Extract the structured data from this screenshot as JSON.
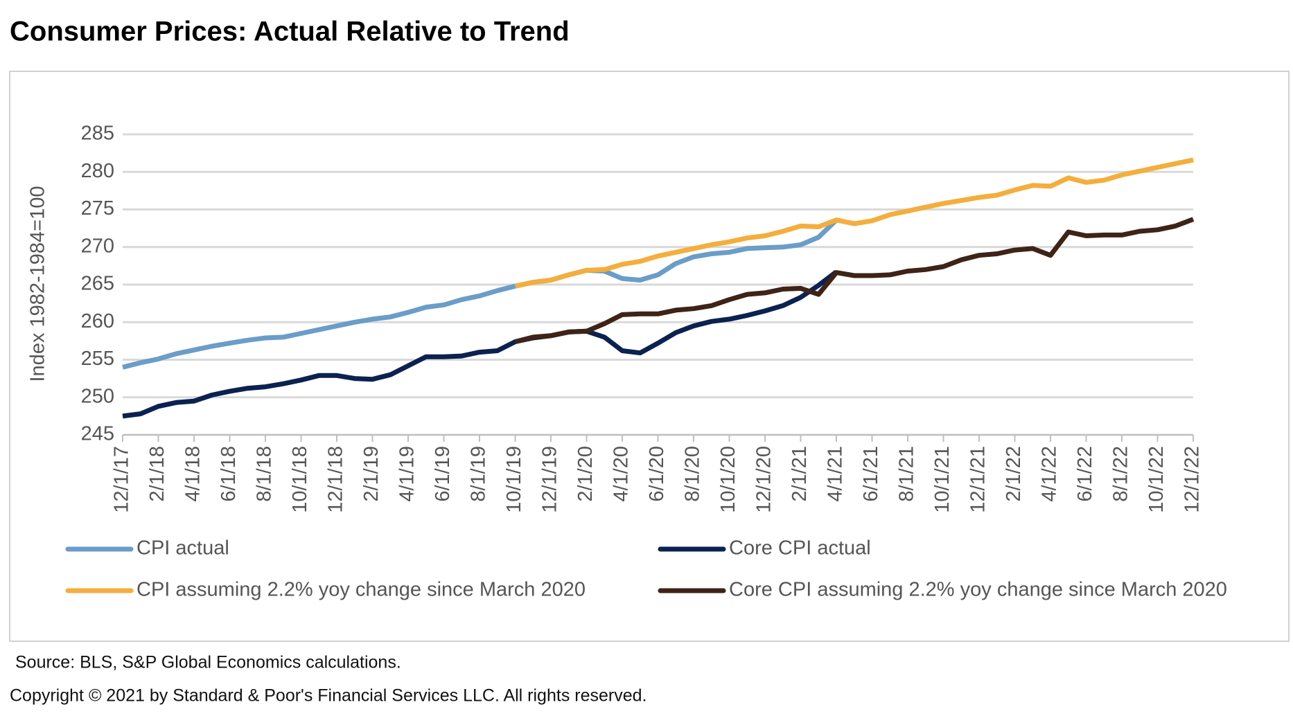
{
  "chart_data": {
    "type": "line",
    "title": "Consumer Prices: Actual Relative to Trend",
    "y_label": "Index 1982-1984=100",
    "source": "Source: BLS, S&P Global Economics calculations.",
    "copyright": "Copyright © 2021 by Standard & Poor's Financial Services LLC. All rights reserved.",
    "categories": [
      "12/1/17",
      null,
      "2/1/18",
      null,
      "4/1/18",
      null,
      "6/1/18",
      null,
      "8/1/18",
      null,
      "10/1/18",
      null,
      "12/1/18",
      null,
      "2/1/19",
      null,
      "4/1/19",
      null,
      "6/1/19",
      null,
      "8/1/19",
      null,
      "10/1/19",
      null,
      "12/1/19",
      null,
      "2/1/20",
      null,
      "4/1/20",
      null,
      "6/1/20",
      null,
      "8/1/20",
      null,
      "10/1/20",
      null,
      "12/1/20",
      null,
      "2/1/21",
      null,
      "4/1/21",
      null,
      "6/1/21",
      null,
      "8/1/21",
      null,
      "10/1/21",
      null,
      "12/1/21",
      null,
      "2/1/22",
      null,
      "4/1/22",
      null,
      "6/1/22",
      null,
      "8/1/22",
      null,
      "10/1/22",
      null,
      "12/1/22"
    ],
    "series": [
      {
        "name": "CPI actual",
        "color": "#6a9dc8",
        "values": [
          254.0,
          254.6,
          255.1,
          255.8,
          256.3,
          256.8,
          257.2,
          257.6,
          257.9,
          258.0,
          258.5,
          259.0,
          259.5,
          260.0,
          260.4,
          260.7,
          261.3,
          262.0,
          262.3,
          263.0,
          263.5,
          264.2,
          264.8,
          265.3,
          265.6,
          266.3,
          266.9,
          266.8,
          265.8,
          265.6,
          266.3,
          267.8,
          268.7,
          269.1,
          269.3,
          269.8,
          269.9,
          270.0,
          270.3,
          271.3,
          273.6,
          null,
          null,
          null,
          null,
          null,
          null,
          null,
          null,
          null,
          null,
          null,
          null,
          null,
          null,
          null,
          null,
          null,
          null,
          null,
          null
        ]
      },
      {
        "name": "Core CPI actual",
        "color": "#0b2250",
        "values": [
          247.5,
          247.8,
          248.8,
          249.3,
          249.5,
          250.3,
          250.8,
          251.2,
          251.4,
          251.8,
          252.3,
          252.9,
          252.9,
          252.5,
          252.4,
          253.0,
          254.2,
          255.4,
          255.4,
          255.5,
          256.0,
          256.2,
          257.4,
          257.9,
          258.2,
          258.7,
          258.8,
          258.0,
          256.2,
          255.9,
          257.2,
          258.6,
          259.5,
          260.1,
          260.4,
          260.9,
          261.5,
          262.2,
          263.3,
          264.9,
          266.7,
          null,
          null,
          null,
          null,
          null,
          null,
          null,
          null,
          null,
          null,
          null,
          null,
          null,
          null,
          null,
          null,
          null,
          null,
          null,
          null
        ]
      },
      {
        "name": "CPI assuming 2.2% yoy change since March 2020",
        "color": "#f4ae3d",
        "values": [
          null,
          null,
          null,
          null,
          null,
          null,
          null,
          null,
          null,
          null,
          null,
          null,
          null,
          null,
          null,
          null,
          null,
          null,
          null,
          null,
          null,
          null,
          264.8,
          265.3,
          265.6,
          266.3,
          266.9,
          267.0,
          267.7,
          268.1,
          268.8,
          269.3,
          269.8,
          270.3,
          270.7,
          271.2,
          271.5,
          272.1,
          272.8,
          272.7,
          273.6,
          273.1,
          273.5,
          274.3,
          274.8,
          275.3,
          275.8,
          276.2,
          276.6,
          276.9,
          277.6,
          278.2,
          278.1,
          279.2,
          278.6,
          278.9,
          279.6,
          280.1,
          280.6,
          281.1,
          281.6
        ]
      },
      {
        "name": "Core CPI assuming 2.2% yoy change since March 2020",
        "color": "#3e2316",
        "values": [
          null,
          null,
          null,
          null,
          null,
          null,
          null,
          null,
          null,
          null,
          null,
          null,
          null,
          null,
          null,
          null,
          null,
          null,
          null,
          null,
          null,
          null,
          257.4,
          258.0,
          258.2,
          258.7,
          258.8,
          259.8,
          261.0,
          261.1,
          261.1,
          261.6,
          261.8,
          262.2,
          263.0,
          263.7,
          263.9,
          264.4,
          264.5,
          263.7,
          266.6,
          266.2,
          266.2,
          266.3,
          266.8,
          267.0,
          267.4,
          268.3,
          268.9,
          269.1,
          269.6,
          269.8,
          268.9,
          272.0,
          271.5,
          271.6,
          271.6,
          272.1,
          272.3,
          272.8,
          273.7
        ]
      }
    ],
    "ylim": [
      245,
      285
    ],
    "yticks": [
      245,
      250,
      255,
      260,
      265,
      270,
      275,
      280,
      285
    ],
    "grid": true
  }
}
